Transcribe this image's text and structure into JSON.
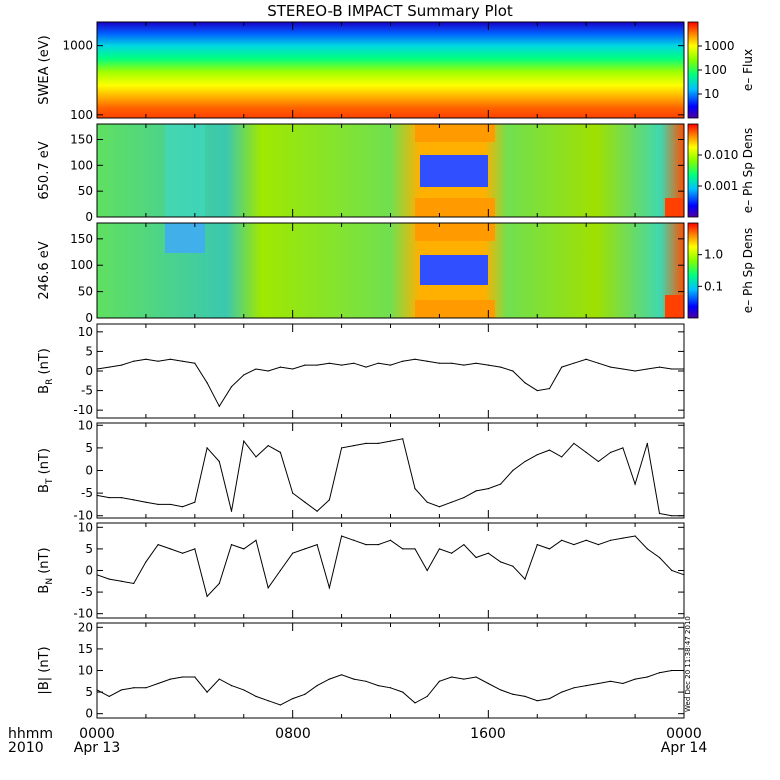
{
  "title": "STEREO-B IMPACT Summary Plot",
  "stamp": "Wed Dec 20 11:38:47 2010",
  "footer": {
    "left_top": "hhmm",
    "left_bottom": "2010",
    "ticks": [
      "0000",
      "0800",
      "1600",
      "0000"
    ],
    "dates": [
      "Apr 13",
      "Apr 14"
    ]
  },
  "chart_data": [
    {
      "type": "heatmap",
      "panel": "swea",
      "ylabel": "SWEA (eV)",
      "yscale": "log",
      "ylim": [
        90,
        2200
      ],
      "yticks": [
        "100",
        "1000"
      ],
      "colorbar": {
        "label": "e– Flux",
        "scale": "log",
        "ticks": [
          "10",
          "100",
          "1000"
        ]
      }
    },
    {
      "type": "heatmap",
      "panel": "pad650",
      "ylabel": "650.7 eV",
      "ylim": [
        0,
        180
      ],
      "yticks": [
        "0",
        "50",
        "100",
        "150"
      ],
      "colorbar": {
        "label": "e– Ph Sp Dens",
        "scale": "log",
        "ticks": [
          "0.001",
          "0.010"
        ]
      }
    },
    {
      "type": "heatmap",
      "panel": "pad246",
      "ylabel": "246.6 eV",
      "ylim": [
        0,
        180
      ],
      "yticks": [
        "0",
        "50",
        "100",
        "150"
      ],
      "colorbar": {
        "label": "e– Ph Sp Dens",
        "scale": "log",
        "ticks": [
          "0.1",
          "1.0"
        ]
      }
    },
    {
      "type": "line",
      "panel": "br",
      "ylabel_main": "B",
      "ylabel_sub": "R",
      "ylabel_unit": "(nT)",
      "ylim": [
        -12,
        12
      ],
      "yticks": [
        "-10",
        "-5",
        "0",
        "5",
        "10"
      ],
      "xlim": [
        0,
        24
      ],
      "series": [
        {
          "x": [
            0,
            0.5,
            1,
            1.5,
            2,
            2.5,
            3,
            3.5,
            4,
            4.5,
            5,
            5.5,
            6,
            6.5,
            7,
            7.5,
            8,
            8.5,
            9,
            9.5,
            10,
            10.5,
            11,
            11.5,
            12,
            12.5,
            13,
            13.5,
            14,
            14.5,
            15,
            15.5,
            16,
            16.5,
            17,
            17.5,
            18,
            18.5,
            19,
            19.5,
            20,
            20.5,
            21,
            21.5,
            22,
            22.5,
            23,
            23.5,
            24
          ],
          "y": [
            0.5,
            1.0,
            1.5,
            2.5,
            3.0,
            2.5,
            3.0,
            2.5,
            2.0,
            -3.0,
            -9.0,
            -4.0,
            -1.0,
            0.5,
            0.0,
            1.0,
            0.5,
            1.5,
            1.5,
            2.0,
            1.5,
            2.0,
            1.0,
            2.0,
            1.5,
            2.5,
            3.0,
            2.5,
            2.0,
            2.0,
            1.5,
            2.0,
            1.5,
            1.0,
            0.0,
            -3.0,
            -5.0,
            -4.5,
            1.0,
            2.0,
            3.0,
            2.0,
            1.0,
            0.5,
            0.0,
            0.5,
            1.0,
            0.5,
            0.5
          ]
        }
      ]
    },
    {
      "type": "line",
      "panel": "bt",
      "ylabel_main": "B",
      "ylabel_sub": "T",
      "ylabel_unit": "(nT)",
      "ylim": [
        -10.5,
        10.5
      ],
      "yticks": [
        "-10",
        "-5",
        "0",
        "5",
        "10"
      ],
      "xlim": [
        0,
        24
      ],
      "series": [
        {
          "x": [
            0,
            0.5,
            1,
            1.5,
            2,
            2.5,
            3,
            3.5,
            4,
            4.5,
            5,
            5.5,
            6,
            6.5,
            7,
            7.5,
            8,
            8.5,
            9,
            9.5,
            10,
            10.5,
            11,
            11.5,
            12,
            12.5,
            13,
            13.5,
            14,
            14.5,
            15,
            15.5,
            16,
            16.5,
            17,
            17.5,
            18,
            18.5,
            19,
            19.5,
            20,
            20.5,
            21,
            21.5,
            22,
            22.5,
            23,
            23.5,
            24
          ],
          "y": [
            -5.5,
            -6.0,
            -6.0,
            -6.5,
            -7.0,
            -7.5,
            -7.5,
            -8.0,
            -7.0,
            5.0,
            2.0,
            -9.0,
            6.5,
            3.0,
            5.5,
            4.0,
            -5.0,
            -7.0,
            -9.0,
            -6.5,
            5.0,
            5.5,
            6.0,
            6.0,
            6.5,
            7.0,
            -4.0,
            -7.0,
            -8.0,
            -7.0,
            -6.0,
            -4.5,
            -4.0,
            -3.0,
            0.0,
            2.0,
            3.5,
            4.5,
            3.0,
            6.0,
            4.0,
            2.0,
            4.0,
            5.0,
            -3.0,
            6.0,
            -9.5,
            -10.0,
            -10.0
          ]
        }
      ]
    },
    {
      "type": "line",
      "panel": "bn",
      "ylabel_main": "B",
      "ylabel_sub": "N",
      "ylabel_unit": "(nT)",
      "ylim": [
        -11,
        11
      ],
      "yticks": [
        "-10",
        "-5",
        "0",
        "5",
        "10"
      ],
      "xlim": [
        0,
        24
      ],
      "series": [
        {
          "x": [
            0,
            0.5,
            1,
            1.5,
            2,
            2.5,
            3,
            3.5,
            4,
            4.5,
            5,
            5.5,
            6,
            6.5,
            7,
            7.5,
            8,
            8.5,
            9,
            9.5,
            10,
            10.5,
            11,
            11.5,
            12,
            12.5,
            13,
            13.5,
            14,
            14.5,
            15,
            15.5,
            16,
            16.5,
            17,
            17.5,
            18,
            18.5,
            19,
            19.5,
            20,
            20.5,
            21,
            21.5,
            22,
            22.5,
            23,
            23.5,
            24
          ],
          "y": [
            -1.0,
            -2.0,
            -2.5,
            -3.0,
            2.0,
            6.0,
            5.0,
            4.0,
            5.0,
            -6.0,
            -3.0,
            6.0,
            5.0,
            7.0,
            -4.0,
            0.0,
            4.0,
            5.0,
            6.0,
            -4.0,
            8.0,
            7.0,
            6.0,
            6.0,
            7.0,
            5.0,
            5.0,
            0.0,
            5.0,
            4.0,
            6.0,
            3.0,
            4.0,
            2.0,
            1.0,
            -2.0,
            6.0,
            5.0,
            7.0,
            6.0,
            7.0,
            6.0,
            7.0,
            7.5,
            8.0,
            5.0,
            3.0,
            0.0,
            -1.0
          ]
        }
      ]
    },
    {
      "type": "line",
      "panel": "bmag",
      "ylabel_main": "|B| (nT)",
      "ylim": [
        -1,
        21
      ],
      "yticks": [
        "0",
        "5",
        "10",
        "15",
        "20"
      ],
      "xlim": [
        0,
        24
      ],
      "series": [
        {
          "x": [
            0,
            0.5,
            1,
            1.5,
            2,
            2.5,
            3,
            3.5,
            4,
            4.5,
            5,
            5.5,
            6,
            6.5,
            7,
            7.5,
            8,
            8.5,
            9,
            9.5,
            10,
            10.5,
            11,
            11.5,
            12,
            12.5,
            13,
            13.5,
            14,
            14.5,
            15,
            15.5,
            16,
            16.5,
            17,
            17.5,
            18,
            18.5,
            19,
            19.5,
            20,
            20.5,
            21,
            21.5,
            22,
            22.5,
            23,
            23.5,
            24
          ],
          "y": [
            5.5,
            4.0,
            5.5,
            6.0,
            6.0,
            7.0,
            8.0,
            8.5,
            8.5,
            5.0,
            8.0,
            6.5,
            5.5,
            4.0,
            3.0,
            2.0,
            3.5,
            4.5,
            6.5,
            8.0,
            9.0,
            8.0,
            7.5,
            6.5,
            6.0,
            5.0,
            2.5,
            4.0,
            7.5,
            8.5,
            8.0,
            8.5,
            7.0,
            5.5,
            4.5,
            4.0,
            3.0,
            3.5,
            5.0,
            6.0,
            6.5,
            7.0,
            7.5,
            7.0,
            8.0,
            8.5,
            9.5,
            10.0,
            10.0
          ]
        }
      ]
    }
  ]
}
